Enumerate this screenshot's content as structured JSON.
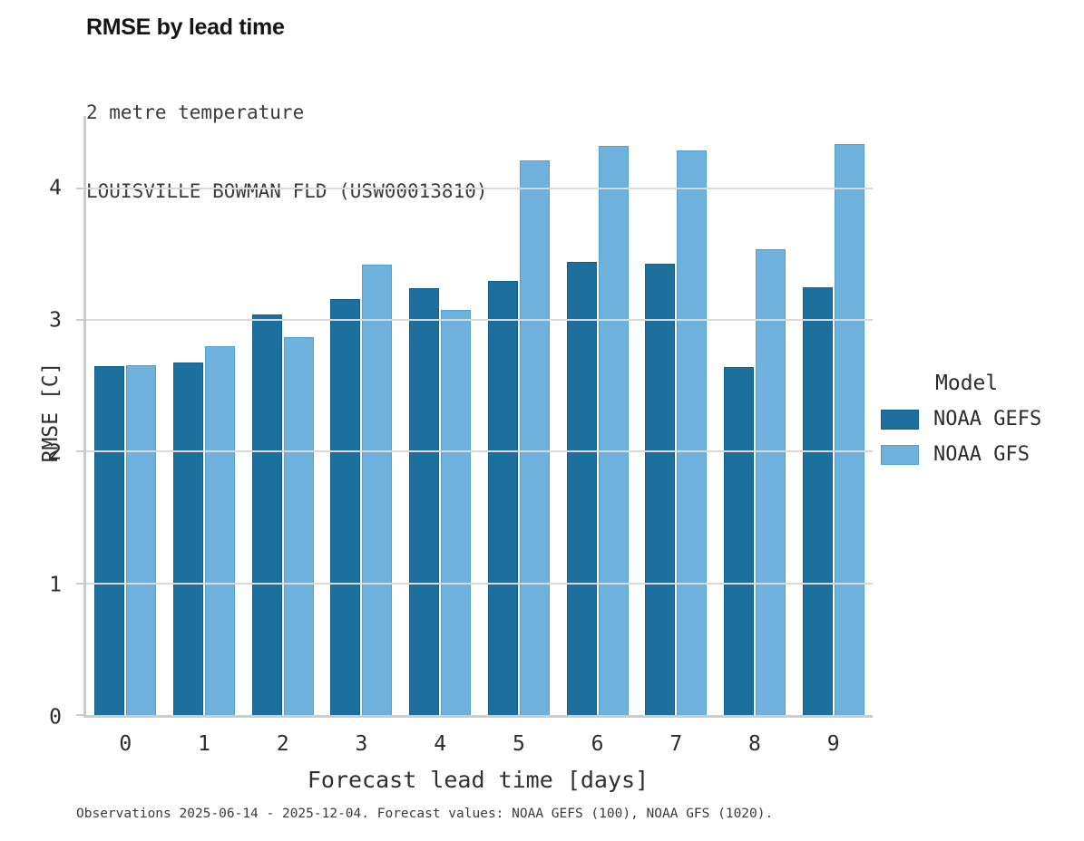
{
  "header": {
    "title": "RMSE by lead time",
    "subtitle_line1": "2 metre temperature",
    "subtitle_line2": "LOUISVILLE BOWMAN FLD (USW00013810)"
  },
  "chart_data": {
    "type": "bar",
    "title": "RMSE by lead time",
    "subtitle": [
      "2 metre temperature",
      "LOUISVILLE BOWMAN FLD (USW00013810)"
    ],
    "categories": [
      "0",
      "1",
      "2",
      "3",
      "4",
      "5",
      "6",
      "7",
      "8",
      "9"
    ],
    "series": [
      {
        "name": "NOAA GEFS",
        "color": "#1d6f9e",
        "values": [
          2.65,
          2.68,
          3.04,
          3.16,
          3.24,
          3.3,
          3.44,
          3.43,
          2.64,
          3.25
        ]
      },
      {
        "name": "NOAA GFS",
        "color": "#6db1dc",
        "values": [
          2.66,
          2.8,
          2.87,
          3.42,
          3.08,
          4.21,
          4.32,
          4.29,
          3.54,
          4.34
        ]
      }
    ],
    "xlabel": "Forecast lead time [days]",
    "ylabel": "RMSE [C]",
    "ylim": [
      0,
      4.55
    ],
    "yticks": [
      0,
      1,
      2,
      3,
      4
    ],
    "grid": "horizontal",
    "legend_title": "Model",
    "legend_position": "right"
  },
  "footer": {
    "note": "Observations 2025-06-14 - 2025-12-04. Forecast values: NOAA GEFS (100), NOAA GFS (1020)."
  }
}
